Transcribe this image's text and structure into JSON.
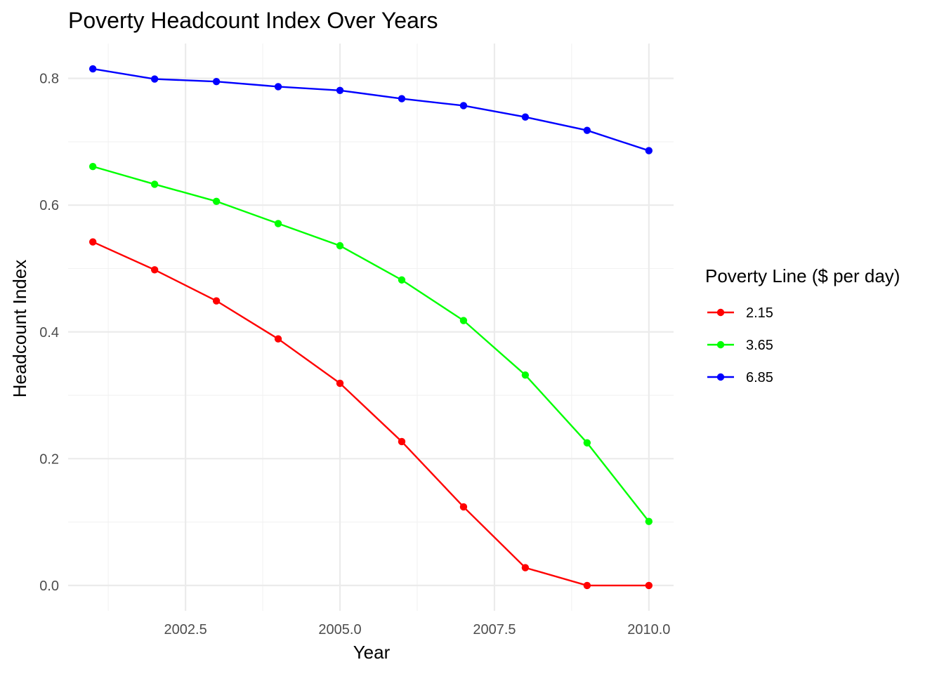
{
  "chart_data": {
    "type": "line",
    "title": "Poverty Headcount Index Over Years",
    "xlabel": "Year",
    "ylabel": "Headcount Index",
    "x": [
      2001,
      2002,
      2003,
      2004,
      2005,
      2006,
      2007,
      2008,
      2009,
      2010
    ],
    "xlim": [
      2000.6,
      2010.4
    ],
    "ylim": [
      -0.04,
      0.855
    ],
    "x_ticks": [
      2002.5,
      2005.0,
      2007.5,
      2010.0
    ],
    "x_tick_labels": [
      "2002.5",
      "2005.0",
      "2007.5",
      "2010.0"
    ],
    "x_minor_ticks": [
      2001.25,
      2003.75,
      2006.25,
      2008.75
    ],
    "y_ticks": [
      0.0,
      0.2,
      0.4,
      0.6,
      0.8
    ],
    "y_tick_labels": [
      "0.0",
      "0.2",
      "0.4",
      "0.6",
      "0.8"
    ],
    "y_minor_ticks": [
      0.1,
      0.3,
      0.5,
      0.7
    ],
    "grid": true,
    "legend": {
      "title": "Poverty Line ($ per day)",
      "position": "right"
    },
    "series": [
      {
        "name": "2.15",
        "color": "#ff0000",
        "values": [
          0.542,
          0.498,
          0.449,
          0.389,
          0.319,
          0.227,
          0.124,
          0.028,
          0.0,
          0.0
        ]
      },
      {
        "name": "3.65",
        "color": "#00ff00",
        "values": [
          0.661,
          0.633,
          0.606,
          0.571,
          0.536,
          0.482,
          0.418,
          0.332,
          0.225,
          0.101
        ]
      },
      {
        "name": "6.85",
        "color": "#0000ff",
        "values": [
          0.815,
          0.799,
          0.795,
          0.787,
          0.781,
          0.768,
          0.757,
          0.739,
          0.718,
          0.686
        ]
      }
    ]
  }
}
